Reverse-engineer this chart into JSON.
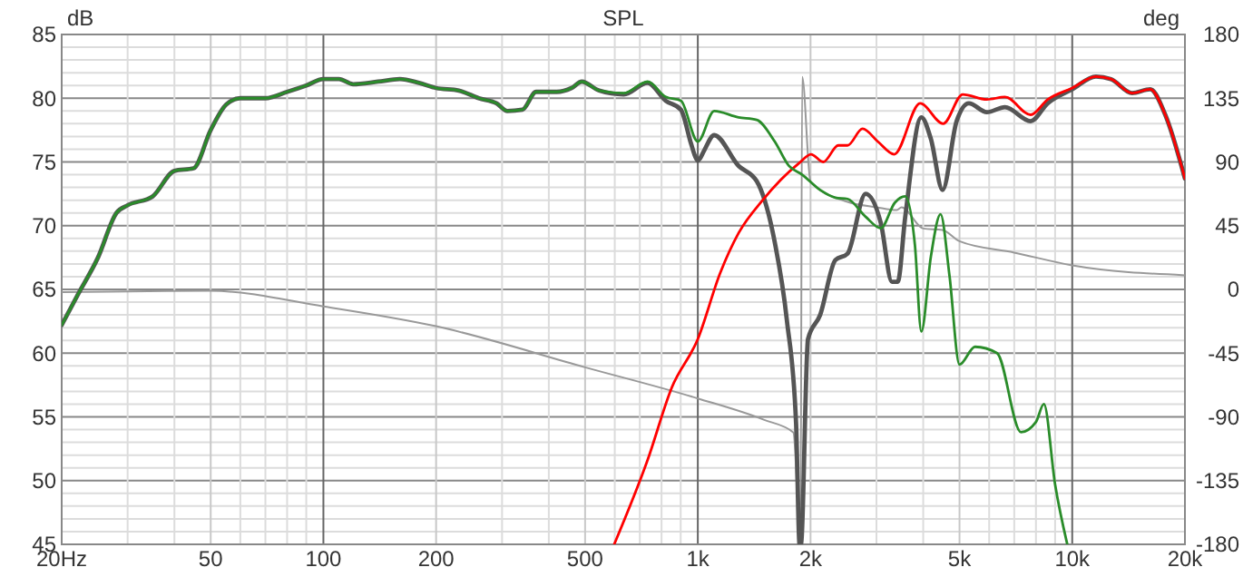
{
  "chart_data": {
    "type": "line",
    "title": "SPL",
    "ylabel": "dB",
    "y2label": "deg",
    "log": "x",
    "grid": true,
    "line_style": "solid",
    "xlim": [
      20,
      20000
    ],
    "ylim": [
      45,
      85
    ],
    "y2lim": [
      -180,
      180
    ],
    "xticks": [
      {
        "value": 20,
        "label": "20Hz"
      },
      {
        "value": 30,
        "label": null
      },
      {
        "value": 40,
        "label": null
      },
      50,
      {
        "value": 60,
        "label": null
      },
      {
        "value": 70,
        "label": null
      },
      {
        "value": 80,
        "label": null
      },
      {
        "value": 90,
        "label": null
      },
      100,
      200,
      {
        "value": 300,
        "label": null
      },
      {
        "value": 400,
        "label": null
      },
      500,
      {
        "value": 600,
        "label": null
      },
      {
        "value": 700,
        "label": null
      },
      {
        "value": 800,
        "label": null
      },
      {
        "value": 900,
        "label": null
      },
      {
        "value": 1000,
        "label": "1k"
      },
      {
        "value": 2000,
        "label": "2k"
      },
      {
        "value": 3000,
        "label": null
      },
      {
        "value": 4000,
        "label": null
      },
      {
        "value": 5000,
        "label": "5k"
      },
      {
        "value": 6000,
        "label": null
      },
      {
        "value": 7000,
        "label": null
      },
      {
        "value": 8000,
        "label": null
      },
      {
        "value": 9000,
        "label": null
      },
      {
        "value": 10000,
        "label": "10k"
      },
      {
        "value": 20000,
        "label": "20k"
      }
    ],
    "yticks": [
      45,
      {
        "value": 46,
        "label": null
      },
      {
        "value": 47,
        "label": null
      },
      {
        "value": 48,
        "label": null
      },
      {
        "value": 49,
        "label": null
      },
      50,
      {
        "value": 51,
        "label": null
      },
      {
        "value": 52,
        "label": null
      },
      {
        "value": 53,
        "label": null
      },
      {
        "value": 54,
        "label": null
      },
      55,
      {
        "value": 56,
        "label": null
      },
      {
        "value": 57,
        "label": null
      },
      {
        "value": 58,
        "label": null
      },
      {
        "value": 59,
        "label": null
      },
      60,
      {
        "value": 61,
        "label": null
      },
      {
        "value": 62,
        "label": null
      },
      {
        "value": 63,
        "label": null
      },
      {
        "value": 64,
        "label": null
      },
      65,
      {
        "value": 66,
        "label": null
      },
      {
        "value": 67,
        "label": null
      },
      {
        "value": 68,
        "label": null
      },
      {
        "value": 69,
        "label": null
      },
      70,
      {
        "value": 71,
        "label": null
      },
      {
        "value": 72,
        "label": null
      },
      {
        "value": 73,
        "label": null
      },
      {
        "value": 74,
        "label": null
      },
      75,
      {
        "value": 76,
        "label": null
      },
      {
        "value": 77,
        "label": null
      },
      {
        "value": 78,
        "label": null
      },
      {
        "value": 79,
        "label": null
      },
      80,
      {
        "value": 81,
        "label": null
      },
      {
        "value": 82,
        "label": null
      },
      {
        "value": 83,
        "label": null
      },
      {
        "value": 84,
        "label": null
      },
      85
    ],
    "y2ticks": [
      -180,
      -135,
      -90,
      -45,
      0,
      45,
      90,
      135,
      180
    ],
    "series": [
      {
        "color": "#999999",
        "axis": "y2",
        "x": [
          20,
          50,
          100,
          200,
          500,
          1000,
          1500,
          1800,
          1880,
          1900,
          2000,
          2500,
          3000,
          3400,
          3500,
          4000,
          4500,
          5000,
          7000,
          10000,
          20000
        ],
        "values": [
          -2,
          -1,
          -12,
          -26,
          -55,
          -77,
          -92,
          -101,
          -180,
          150,
          76,
          62,
          58,
          56,
          58,
          43,
          42,
          34,
          26,
          17,
          10
        ]
      },
      {
        "color": "#555555",
        "x": [
          20,
          22,
          25,
          28,
          30,
          35,
          40,
          45,
          50,
          55,
          60,
          70,
          80,
          90,
          100,
          110,
          120,
          140,
          160,
          180,
          200,
          230,
          260,
          290,
          310,
          340,
          370,
          420,
          460,
          490,
          545,
          634,
          734,
          821,
          901,
          960,
          985,
          1000,
          1015,
          1040,
          1106,
          1284,
          1436,
          1605,
          1729,
          1830,
          1870,
          1885,
          1969,
          2122,
          2330,
          2511,
          2806,
          3082,
          3300,
          3420,
          3578,
          3954,
          4194,
          4505,
          4912,
          5295,
          5915,
          6612,
          7743,
          8600,
          10000,
          11570,
          12690,
          14450,
          16150,
          17720,
          20000
        ],
        "values": [
          62.2,
          64.5,
          67.5,
          71,
          71.6,
          72.3,
          74.3,
          74.5,
          77.5,
          79.5,
          80,
          80,
          80.5,
          81,
          81.5,
          81.5,
          81.1,
          81.3,
          81.5,
          81.2,
          80.8,
          80.6,
          80,
          79.6,
          79,
          79.1,
          80.5,
          80.5,
          80.8,
          81.3,
          80.6,
          80.3,
          81.2,
          79.8,
          79.1,
          76.4,
          75.4,
          75.1,
          75.3,
          75.9,
          77.1,
          74.7,
          73.5,
          68.7,
          62.6,
          54.5,
          45,
          45,
          61.1,
          63,
          67.3,
          67.8,
          72.5,
          70.2,
          65.6,
          65.6,
          70.6,
          78.5,
          76.8,
          72.8,
          78.2,
          79.6,
          78.9,
          79.3,
          78.2,
          79.6,
          80.7,
          81.7,
          81.5,
          80.4,
          80.7,
          78.7,
          73.7
        ]
      },
      {
        "color": "#ff0000",
        "x": [
          598,
          734,
          852,
          1000,
          1148,
          1284,
          1490,
          1863,
          2006,
          2163,
          2373,
          2511,
          2755,
          3025,
          3346,
          3924,
          4522,
          5100,
          5915,
          6612,
          7743,
          8600,
          10000,
          11570,
          12690,
          14450,
          16150,
          17720,
          20000
        ],
        "values": [
          45,
          51.6,
          57.3,
          61.1,
          66.3,
          69.4,
          72,
          74.9,
          75.6,
          75,
          76.3,
          76.3,
          77.6,
          76.6,
          75.6,
          79.6,
          78,
          80.3,
          79.9,
          80.1,
          78.7,
          79.9,
          80.8,
          81.7,
          81.5,
          80.4,
          80.7,
          78.7,
          73.7
        ]
      },
      {
        "color": "#2a8c2a",
        "x": [
          20,
          22,
          25,
          28,
          30,
          35,
          40,
          45,
          50,
          55,
          60,
          70,
          80,
          90,
          100,
          110,
          120,
          140,
          160,
          180,
          200,
          230,
          260,
          290,
          310,
          340,
          370,
          420,
          460,
          490,
          545,
          634,
          734,
          821,
          901,
          1000,
          1106,
          1284,
          1436,
          1605,
          1750,
          1900,
          2122,
          2330,
          2511,
          2806,
          3082,
          3358,
          3578,
          3800,
          3954,
          4194,
          4450,
          4700,
          5000,
          5500,
          6300,
          7300,
          8000,
          8400,
          9000,
          9700
        ],
        "values": [
          62.2,
          64.5,
          67.5,
          71,
          71.6,
          72.3,
          74.3,
          74.5,
          77.5,
          79.5,
          80,
          80,
          80.5,
          81,
          81.5,
          81.5,
          81.1,
          81.3,
          81.5,
          81.2,
          80.8,
          80.6,
          80,
          79.6,
          79,
          79.1,
          80.5,
          80.5,
          80.8,
          81.3,
          80.6,
          80.4,
          81.3,
          80.1,
          79.8,
          76.6,
          79,
          78.5,
          78.3,
          76.6,
          74.7,
          74,
          72.8,
          72.2,
          72.1,
          70.7,
          69.8,
          71.8,
          72.3,
          68.5,
          61.7,
          67.6,
          70.9,
          66.1,
          59.1,
          60.5,
          60,
          53.8,
          54.6,
          56,
          49.7,
          45
        ]
      }
    ]
  }
}
